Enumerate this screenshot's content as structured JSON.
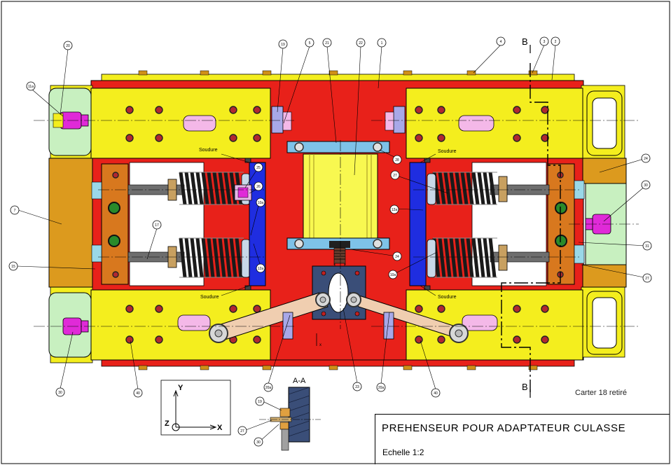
{
  "title_block": {
    "title": "PREHENSEUR  POUR ADAPTATEUR CULASSE",
    "scale": "Echelle 1:2"
  },
  "note": "Carter 18 retiré",
  "section_labels": {
    "section_aa": "A-A",
    "section_b_top": "B",
    "section_b_bottom": "B"
  },
  "weld_labels": {
    "top_left": "Soudure",
    "top_right": "Soudure",
    "bottom_left": "Soudure",
    "bottom_right": "Soudure"
  },
  "axes": {
    "y": "Y",
    "z": "Z",
    "x": "X"
  },
  "balloons": {
    "b20": "20",
    "b11": "11a",
    "b19": "19",
    "b5a": "5",
    "b21": "21",
    "b22": "22",
    "b1": "1",
    "b4": "4",
    "b3": "3",
    "b2": "2",
    "b7": "7",
    "b17": "17",
    "b15": "15",
    "b25": "25",
    "b26": "26",
    "b10a": "10a",
    "b12a": "12a",
    "b28": "28",
    "b27top": "27",
    "b12b": "12a",
    "b24": "24",
    "b30r": "30",
    "b31": "31",
    "b27": "27",
    "b10b": "10a",
    "b30": "30",
    "b40l": "40",
    "b20a": "20a",
    "b23": "23",
    "b20b": "20a",
    "b40r": "40",
    "bs19": "19",
    "bs27": "27",
    "bs30": "30"
  },
  "colors": {
    "red_frame": "#e8211a",
    "yellow_plate": "#f4ee1e",
    "orange_block": "#dc9a1e",
    "blue_plate": "#1f2de0",
    "light_green": "#c8f0c0",
    "magenta": "#e02ad8",
    "cyan_bar": "#7ec2e8",
    "tan_arm": "#f0ceb0",
    "spring": "#222222",
    "rod": "#6e6e6e",
    "cylinder": "#f8f850",
    "navy_block": "#3a4e78"
  }
}
